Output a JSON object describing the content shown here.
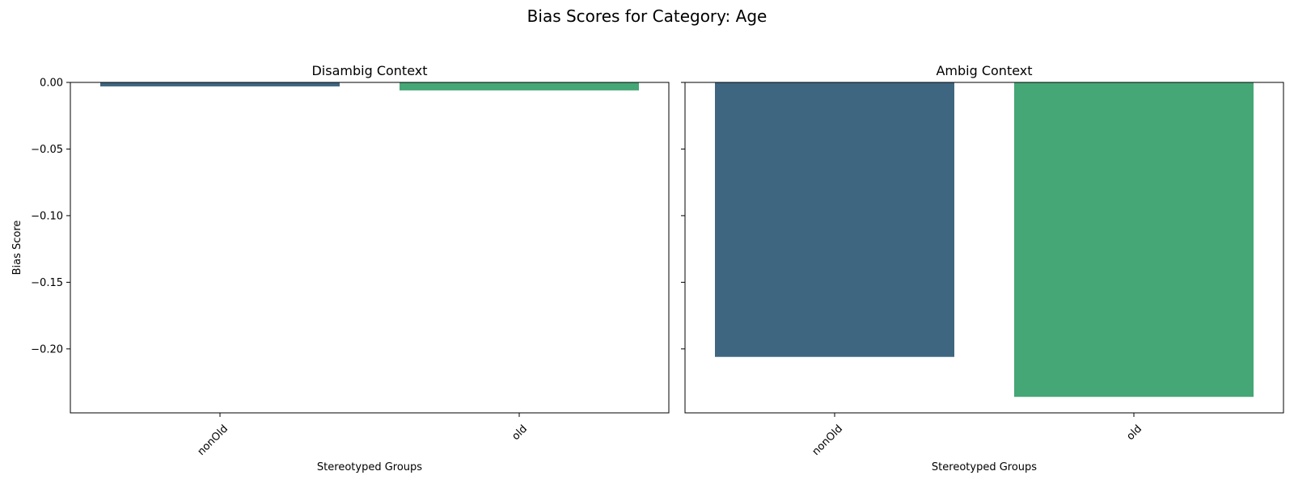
{
  "figure_title": "Bias Scores for Category: Age",
  "chart_data": [
    {
      "type": "bar",
      "title": "Disambig Context",
      "xlabel": "Stereotyped Groups",
      "ylabel": "Bias Score",
      "categories": [
        "nonOld",
        "old"
      ],
      "values": [
        -0.003,
        -0.006
      ],
      "colors": [
        "#3e6680",
        "#45a776"
      ],
      "ylim": [
        -0.248,
        0.0
      ],
      "yticks": [
        "0.00",
        "−0.05",
        "−0.10",
        "−0.15",
        "−0.20"
      ],
      "ytick_values": [
        0.0,
        -0.05,
        -0.1,
        -0.15,
        -0.2
      ],
      "grid": false
    },
    {
      "type": "bar",
      "title": "Ambig Context",
      "xlabel": "Stereotyped Groups",
      "ylabel": "",
      "categories": [
        "nonOld",
        "old"
      ],
      "values": [
        -0.206,
        -0.236
      ],
      "colors": [
        "#3e6680",
        "#45a776"
      ],
      "ylim": [
        -0.248,
        0.0
      ],
      "ytick_values": [
        0.0,
        -0.05,
        -0.1,
        -0.15,
        -0.2
      ],
      "grid": false
    }
  ]
}
